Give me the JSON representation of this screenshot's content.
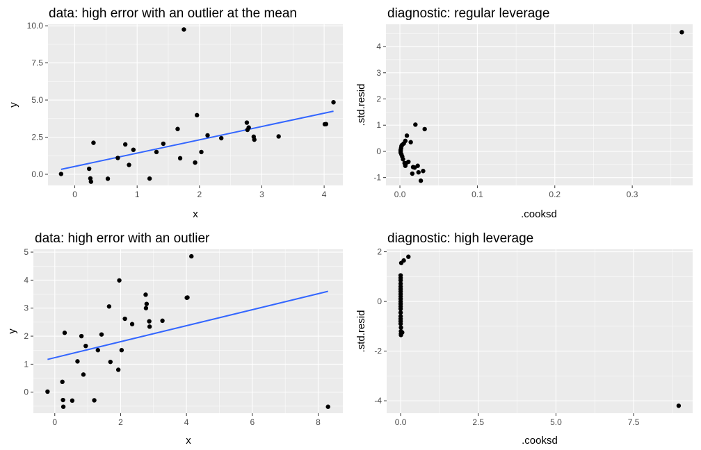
{
  "chart_data": [
    {
      "type": "scatter",
      "title": "data: high error with an outlier at the mean",
      "xlabel": "x",
      "ylabel": "y",
      "xlim": [
        -0.43,
        4.3
      ],
      "ylim": [
        -0.75,
        10.1
      ],
      "x_ticks": [
        0,
        1,
        2,
        3,
        4
      ],
      "x_tick_labels": [
        "0",
        "1",
        "2",
        "3",
        "4"
      ],
      "y_ticks": [
        0,
        2.5,
        5,
        7.5,
        10
      ],
      "y_tick_labels": [
        "0.0",
        "2.5",
        "5.0",
        "7.5",
        "10.0"
      ],
      "grid": true,
      "points": [
        {
          "x": -0.22,
          "y": 0.02
        },
        {
          "x": 0.23,
          "y": 0.37
        },
        {
          "x": 0.25,
          "y": -0.28
        },
        {
          "x": 0.26,
          "y": -0.5
        },
        {
          "x": 0.3,
          "y": 2.12
        },
        {
          "x": 0.53,
          "y": -0.3
        },
        {
          "x": 0.69,
          "y": 1.1
        },
        {
          "x": 0.81,
          "y": 2.01
        },
        {
          "x": 0.87,
          "y": 0.63
        },
        {
          "x": 0.94,
          "y": 1.65
        },
        {
          "x": 1.2,
          "y": -0.29
        },
        {
          "x": 1.31,
          "y": 1.5
        },
        {
          "x": 1.42,
          "y": 2.06
        },
        {
          "x": 1.65,
          "y": 3.05
        },
        {
          "x": 1.69,
          "y": 1.08
        },
        {
          "x": 1.75,
          "y": 9.75
        },
        {
          "x": 1.93,
          "y": 0.79
        },
        {
          "x": 1.96,
          "y": 3.98
        },
        {
          "x": 2.03,
          "y": 1.5
        },
        {
          "x": 2.13,
          "y": 2.62
        },
        {
          "x": 2.35,
          "y": 2.43
        },
        {
          "x": 2.76,
          "y": 3.48
        },
        {
          "x": 2.77,
          "y": 2.99
        },
        {
          "x": 2.79,
          "y": 3.15
        },
        {
          "x": 2.87,
          "y": 2.53
        },
        {
          "x": 2.88,
          "y": 2.33
        },
        {
          "x": 3.27,
          "y": 2.55
        },
        {
          "x": 4.01,
          "y": 3.37
        },
        {
          "x": 4.03,
          "y": 3.38
        },
        {
          "x": 4.15,
          "y": 4.85
        }
      ],
      "fit_line": {
        "x": [
          -0.22,
          4.15
        ],
        "y": [
          0.33,
          4.25
        ],
        "color": "#3366FF"
      }
    },
    {
      "type": "scatter",
      "title": "diagnostic: regular leverage",
      "xlabel": ".cooksd",
      "ylabel": ".std.resid",
      "xlim": [
        -0.018,
        0.378
      ],
      "ylim": [
        -1.3,
        4.85
      ],
      "x_ticks": [
        0,
        0.1,
        0.2,
        0.3
      ],
      "x_tick_labels": [
        "0.0",
        "0.1",
        "0.2",
        "0.3"
      ],
      "y_ticks": [
        -1,
        0,
        1,
        2,
        3,
        4
      ],
      "y_tick_labels": [
        "-1",
        "0",
        "1",
        "2",
        "3",
        "4"
      ],
      "grid": true,
      "points": [
        {
          "x": 0.001,
          "y": 0.0
        },
        {
          "x": 0.001,
          "y": 0.05
        },
        {
          "x": 0.001,
          "y": -0.05
        },
        {
          "x": 0.0015,
          "y": 0.12
        },
        {
          "x": 0.002,
          "y": -0.12
        },
        {
          "x": 0.002,
          "y": 0.2
        },
        {
          "x": 0.003,
          "y": 0.25
        },
        {
          "x": 0.003,
          "y": -0.2
        },
        {
          "x": 0.004,
          "y": -0.3
        },
        {
          "x": 0.005,
          "y": 0.3
        },
        {
          "x": 0.006,
          "y": -0.45
        },
        {
          "x": 0.007,
          "y": -0.55
        },
        {
          "x": 0.007,
          "y": 0.4
        },
        {
          "x": 0.008,
          "y": -0.45
        },
        {
          "x": 0.009,
          "y": 0.6
        },
        {
          "x": 0.011,
          "y": -0.4
        },
        {
          "x": 0.014,
          "y": 0.35
        },
        {
          "x": 0.016,
          "y": -0.85
        },
        {
          "x": 0.017,
          "y": -0.6
        },
        {
          "x": 0.019,
          "y": -0.62
        },
        {
          "x": 0.02,
          "y": 1.02
        },
        {
          "x": 0.023,
          "y": -0.55
        },
        {
          "x": 0.024,
          "y": -0.8
        },
        {
          "x": 0.027,
          "y": -1.12
        },
        {
          "x": 0.03,
          "y": -0.75
        },
        {
          "x": 0.032,
          "y": 0.85
        },
        {
          "x": 0.364,
          "y": 4.55
        }
      ]
    },
    {
      "type": "scatter",
      "title": "data: high error with an outlier",
      "xlabel": "x",
      "ylabel": "y",
      "xlim": [
        -0.65,
        8.75
      ],
      "ylim": [
        -0.75,
        5.1
      ],
      "x_ticks": [
        0,
        2,
        4,
        6,
        8
      ],
      "x_tick_labels": [
        "0",
        "2",
        "4",
        "6",
        "8"
      ],
      "y_ticks": [
        0,
        1,
        2,
        3,
        4,
        5
      ],
      "y_tick_labels": [
        "0",
        "1",
        "2",
        "3",
        "4",
        "5"
      ],
      "grid": true,
      "points": [
        {
          "x": -0.22,
          "y": 0.02
        },
        {
          "x": 0.23,
          "y": 0.37
        },
        {
          "x": 0.25,
          "y": -0.28
        },
        {
          "x": 0.26,
          "y": -0.52
        },
        {
          "x": 0.3,
          "y": 2.12
        },
        {
          "x": 0.53,
          "y": -0.3
        },
        {
          "x": 0.69,
          "y": 1.1
        },
        {
          "x": 0.81,
          "y": 2.0
        },
        {
          "x": 0.87,
          "y": 0.63
        },
        {
          "x": 0.94,
          "y": 1.65
        },
        {
          "x": 1.2,
          "y": -0.29
        },
        {
          "x": 1.31,
          "y": 1.5
        },
        {
          "x": 1.42,
          "y": 2.06
        },
        {
          "x": 1.65,
          "y": 3.06
        },
        {
          "x": 1.69,
          "y": 1.08
        },
        {
          "x": 1.93,
          "y": 0.8
        },
        {
          "x": 1.96,
          "y": 3.99
        },
        {
          "x": 2.03,
          "y": 1.5
        },
        {
          "x": 2.13,
          "y": 2.62
        },
        {
          "x": 2.35,
          "y": 2.43
        },
        {
          "x": 2.76,
          "y": 3.48
        },
        {
          "x": 2.77,
          "y": 3.0
        },
        {
          "x": 2.79,
          "y": 3.15
        },
        {
          "x": 2.87,
          "y": 2.53
        },
        {
          "x": 2.88,
          "y": 2.34
        },
        {
          "x": 3.27,
          "y": 2.55
        },
        {
          "x": 4.01,
          "y": 3.37
        },
        {
          "x": 4.03,
          "y": 3.38
        },
        {
          "x": 4.15,
          "y": 4.85
        },
        {
          "x": 8.3,
          "y": -0.52
        }
      ],
      "fit_line": {
        "x": [
          -0.22,
          8.3
        ],
        "y": [
          1.17,
          3.6
        ],
        "color": "#3366FF"
      }
    },
    {
      "type": "scatter",
      "title": "diagnostic: high leverage",
      "xlabel": ".cooksd",
      "ylabel": ".std.resid",
      "xlim": [
        -0.45,
        9.4
      ],
      "ylim": [
        -4.5,
        2.1
      ],
      "x_ticks": [
        0,
        2.5,
        5,
        7.5
      ],
      "x_tick_labels": [
        "0.0",
        "2.5",
        "5.0",
        "7.5"
      ],
      "y_ticks": [
        -4,
        -2,
        0,
        2
      ],
      "y_tick_labels": [
        "-4",
        "-2",
        "0",
        "2"
      ],
      "grid": true,
      "points": [
        {
          "x": 0.0,
          "y": 1.05
        },
        {
          "x": 0.0,
          "y": 0.95
        },
        {
          "x": 0.0,
          "y": 0.85
        },
        {
          "x": 0.0,
          "y": 0.72
        },
        {
          "x": 0.0,
          "y": 0.6
        },
        {
          "x": 0.0,
          "y": 0.5
        },
        {
          "x": 0.0,
          "y": 0.4
        },
        {
          "x": 0.0,
          "y": 0.3
        },
        {
          "x": 0.0,
          "y": 0.2
        },
        {
          "x": 0.0,
          "y": 0.1
        },
        {
          "x": 0.0,
          "y": 0.0
        },
        {
          "x": 0.0,
          "y": -0.1
        },
        {
          "x": 0.0,
          "y": -0.2
        },
        {
          "x": 0.0,
          "y": -0.3
        },
        {
          "x": 0.0,
          "y": -0.45
        },
        {
          "x": 0.0,
          "y": -0.6
        },
        {
          "x": 0.0,
          "y": -0.7
        },
        {
          "x": 0.0,
          "y": -0.8
        },
        {
          "x": 0.0,
          "y": -0.9
        },
        {
          "x": 0.01,
          "y": -1.05
        },
        {
          "x": 0.01,
          "y": -1.2
        },
        {
          "x": 0.01,
          "y": -1.3
        },
        {
          "x": 0.01,
          "y": -1.35
        },
        {
          "x": 0.05,
          "y": -1.25
        },
        {
          "x": 0.02,
          "y": 1.55
        },
        {
          "x": 0.1,
          "y": 1.65
        },
        {
          "x": 0.25,
          "y": 1.8
        },
        {
          "x": 8.95,
          "y": -4.2
        }
      ]
    }
  ]
}
